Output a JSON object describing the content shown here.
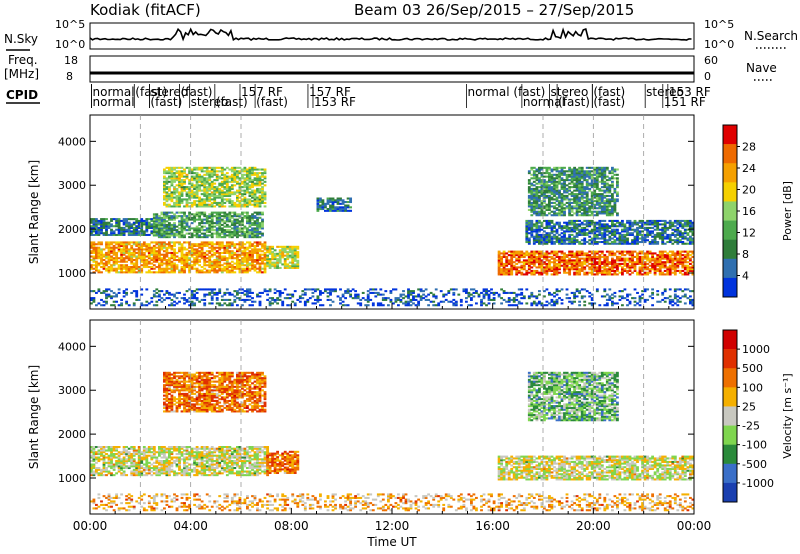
{
  "header": {
    "station": "Kodiak (fitACF)",
    "beam_date": "Beam 03  26/Sep/2015 – 27/Sep/2015"
  },
  "strips": {
    "nsky_label": "N.Sky",
    "nsky_ticks": [
      "10^5",
      "10^0"
    ],
    "nsearch_label": "N.Search",
    "nsearch_ticks": [
      "10^5",
      "10^0"
    ],
    "freq_label_1": "Freq.",
    "freq_label_2": "[MHz]",
    "freq_ticks": [
      "18",
      "8"
    ],
    "nave_label": "Nave",
    "nave_ticks": [
      "60",
      "0"
    ],
    "cpid_label": "CPID"
  },
  "cpid_labels": [
    {
      "text": "normal",
      "t": 0.1,
      "row": 1
    },
    {
      "text": "normal",
      "t": 0.1,
      "row": 2
    },
    {
      "text": "(fast)",
      "t": 1.8,
      "row": 1
    },
    {
      "text": "stereo",
      "t": 2.4,
      "row": 1
    },
    {
      "text": "(fast)",
      "t": 2.4,
      "row": 2
    },
    {
      "text": "(fast)",
      "t": 3.6,
      "row": 1
    },
    {
      "text": "stereo",
      "t": 4.0,
      "row": 2
    },
    {
      "text": "(fast)",
      "t": 5.0,
      "row": 2
    },
    {
      "text": "157 RF",
      "t": 6.0,
      "row": 1
    },
    {
      "text": "(fast)",
      "t": 6.6,
      "row": 2
    },
    {
      "text": "157 RF",
      "t": 8.7,
      "row": 1
    },
    {
      "text": "153 RF",
      "t": 8.9,
      "row": 2
    },
    {
      "text": "normal (fast)",
      "t": 15.0,
      "row": 1
    },
    {
      "text": "normal",
      "t": 17.2,
      "row": 2
    },
    {
      "text": "stereo",
      "t": 18.3,
      "row": 1
    },
    {
      "text": "(fast)",
      "t": 18.6,
      "row": 2
    },
    {
      "text": "(fast)",
      "t": 20.0,
      "row": 1
    },
    {
      "text": "(fast)",
      "t": 20.0,
      "row": 2
    },
    {
      "text": "stereo",
      "t": 22.1,
      "row": 1
    },
    {
      "text": "153 RF",
      "t": 23.0,
      "row": 1
    },
    {
      "text": "151 RF",
      "t": 22.8,
      "row": 2
    }
  ],
  "chart_data": [
    {
      "type": "heatmap",
      "name": "Power",
      "ylabel": "Slant Range [km]",
      "ylim": [
        180,
        4600
      ],
      "yticks": [
        "4000",
        "3000",
        "2000",
        "1000"
      ],
      "xlim": [
        0,
        24
      ],
      "colorbar_label": "Power [dB]",
      "colorbar_ticks": [
        "28",
        "24",
        "20",
        "16",
        "12",
        "8",
        "4"
      ],
      "colors": [
        "#0033dd",
        "#2f6fb0",
        "#2f7d3a",
        "#4daa4d",
        "#8ed36b",
        "#f5d000",
        "#f5a000",
        "#ee6a00",
        "#e00000"
      ],
      "features": [
        {
          "t0": 0.0,
          "t1": 6.9,
          "r0": 1000,
          "r1": 1700,
          "level": 0.72
        },
        {
          "t0": 0.0,
          "t1": 3.0,
          "r0": 1850,
          "r1": 2250,
          "level": 0.2
        },
        {
          "t0": 2.5,
          "t1": 6.8,
          "r0": 1800,
          "r1": 2400,
          "level": 0.35
        },
        {
          "t0": 2.9,
          "t1": 6.9,
          "r0": 2500,
          "r1": 3400,
          "level": 0.5
        },
        {
          "t0": 7.0,
          "t1": 8.2,
          "r0": 1100,
          "r1": 1600,
          "level": 0.55
        },
        {
          "t0": 9.0,
          "t1": 10.3,
          "r0": 2400,
          "r1": 2700,
          "level": 0.2
        },
        {
          "t0": 16.2,
          "t1": 24.0,
          "r0": 950,
          "r1": 1500,
          "level": 0.82
        },
        {
          "t0": 17.3,
          "t1": 24.0,
          "r0": 1650,
          "r1": 2200,
          "level": 0.2
        },
        {
          "t0": 17.4,
          "t1": 21.0,
          "r0": 2300,
          "r1": 3400,
          "level": 0.3
        },
        {
          "t0": 0.0,
          "t1": 24.0,
          "r0": 250,
          "r1": 650,
          "level": 0.12
        }
      ]
    },
    {
      "type": "heatmap",
      "name": "Velocity",
      "ylabel": "Slant Range [km]",
      "ylim": [
        180,
        4600
      ],
      "yticks": [
        "4000",
        "3000",
        "2000",
        "1000"
      ],
      "xlim": [
        0,
        24
      ],
      "xticks": [
        "00:00",
        "04:00",
        "08:00",
        "12:00",
        "16:00",
        "20:00",
        "00:00"
      ],
      "xlabel": "Time UT",
      "colorbar_label": "Velocity [m s⁻¹]",
      "colorbar_ticks": [
        "1000",
        "500",
        "100",
        "25",
        "-25",
        "-100",
        "-500",
        "-1000"
      ],
      "colors": [
        "#1a3fb0",
        "#3a6fc8",
        "#2a8a3a",
        "#7fd64f",
        "#c8c8c0",
        "#f5b000",
        "#ee7000",
        "#e03000",
        "#d00000"
      ],
      "features": [
        {
          "t0": 0.0,
          "t1": 7.0,
          "r0": 1050,
          "r1": 1700,
          "level": 0.5
        },
        {
          "t0": 2.9,
          "t1": 6.9,
          "r0": 2500,
          "r1": 3400,
          "level": 0.72
        },
        {
          "t0": 7.0,
          "t1": 8.2,
          "r0": 1100,
          "r1": 1600,
          "level": 0.72
        },
        {
          "t0": 16.2,
          "t1": 24.0,
          "r0": 950,
          "r1": 1500,
          "level": 0.5
        },
        {
          "t0": 17.4,
          "t1": 21.0,
          "r0": 2300,
          "r1": 3400,
          "level": 0.35
        },
        {
          "t0": 0.0,
          "t1": 24.0,
          "r0": 250,
          "r1": 650,
          "level": 0.62
        }
      ]
    }
  ]
}
